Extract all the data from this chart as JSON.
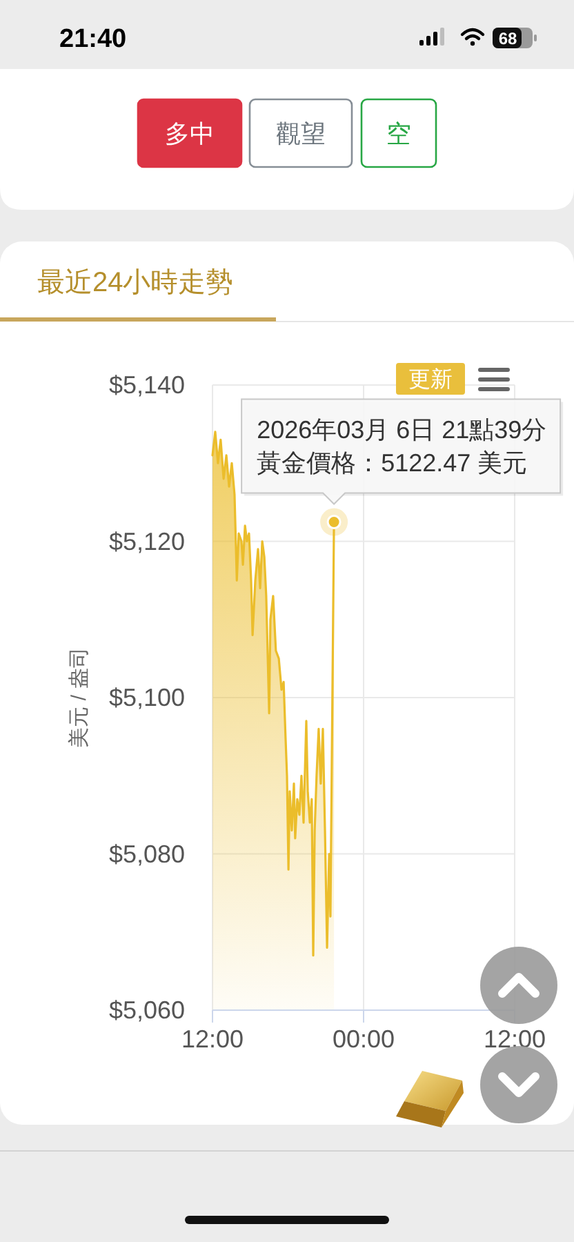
{
  "chart_data": {
    "type": "area",
    "title": "最近24小時走勢",
    "ylabel": "美元 / 盎司",
    "x": [
      "2026-03-06T12:00",
      "2026-03-06T12:13",
      "2026-03-06T12:26",
      "2026-03-06T12:39",
      "2026-03-06T12:53",
      "2026-03-06T13:06",
      "2026-03-06T13:19",
      "2026-03-06T13:32",
      "2026-03-06T13:45",
      "2026-03-06T13:56",
      "2026-03-06T14:05",
      "2026-03-06T14:18",
      "2026-03-06T14:25",
      "2026-03-06T14:35",
      "2026-03-06T14:44",
      "2026-03-06T14:54",
      "2026-03-06T15:04",
      "2026-03-06T15:11",
      "2026-03-06T15:24",
      "2026-03-06T15:37",
      "2026-03-06T15:47",
      "2026-03-06T15:57",
      "2026-03-06T16:07",
      "2026-03-06T16:16",
      "2026-03-06T16:30",
      "2026-03-06T16:36",
      "2026-03-06T16:49",
      "2026-03-06T17:02",
      "2026-03-06T17:16",
      "2026-03-06T17:29",
      "2026-03-06T17:39",
      "2026-03-06T17:48",
      "2026-03-06T17:55",
      "2026-03-06T18:02",
      "2026-03-06T18:08",
      "2026-03-06T18:18",
      "2026-03-06T18:28",
      "2026-03-06T18:34",
      "2026-03-06T18:44",
      "2026-03-06T18:54",
      "2026-03-06T19:04",
      "2026-03-06T19:14",
      "2026-03-06T19:27",
      "2026-03-06T19:34",
      "2026-03-06T19:44",
      "2026-03-06T19:53",
      "2026-03-06T20:00",
      "2026-03-06T20:07",
      "2026-03-06T20:16",
      "2026-03-06T20:26",
      "2026-03-06T20:36",
      "2026-03-06T20:46",
      "2026-03-06T20:56",
      "2026-03-06T21:06",
      "2026-03-06T21:16",
      "2026-03-06T21:22",
      "2026-03-06T21:39"
    ],
    "series": [
      {
        "color": "#ebbd2b",
        "values": [
          5131,
          5134,
          5130,
          5133,
          5128,
          5131,
          5127,
          5130,
          5126,
          5115,
          5121,
          5120,
          5117,
          5122,
          5120,
          5121,
          5115,
          5108,
          5115,
          5119,
          5114,
          5120,
          5118,
          5113,
          5098,
          5110,
          5113,
          5106,
          5105,
          5101,
          5102,
          5095,
          5090,
          5078,
          5088,
          5083,
          5089,
          5082,
          5087,
          5085,
          5090,
          5084,
          5097,
          5088,
          5084,
          5087,
          5067,
          5083,
          5090,
          5096,
          5089,
          5096,
          5083,
          5068,
          5080,
          5072,
          5122.47
        ]
      }
    ],
    "xlim": [
      "2026-03-06T12:00",
      "2026-03-07T12:00"
    ],
    "xticks": [
      {
        "value": "2026-03-06T12:00",
        "label": "12:00"
      },
      {
        "value": "2026-03-07T00:00",
        "label": "00:00"
      },
      {
        "value": "2026-03-07T12:00",
        "label": "12:00"
      }
    ],
    "ylim": [
      5060,
      5140
    ],
    "yticks": [
      {
        "value": 5060,
        "label": "$5,060"
      },
      {
        "value": 5080,
        "label": "$5,080"
      },
      {
        "value": 5100,
        "label": "$5,100"
      },
      {
        "value": 5120,
        "label": "$5,120"
      },
      {
        "value": 5140,
        "label": "$5,140"
      }
    ],
    "grid": true,
    "annotations": [
      "21:40",
      "68",
      "多中",
      "觀望",
      "空",
      "更新",
      "2026年03月 6日 21點39分",
      {
        "text": "黃金價格：5122.47 美元",
        "x": "2026-03-06T21:39",
        "y": 5122.47
      }
    ]
  }
}
